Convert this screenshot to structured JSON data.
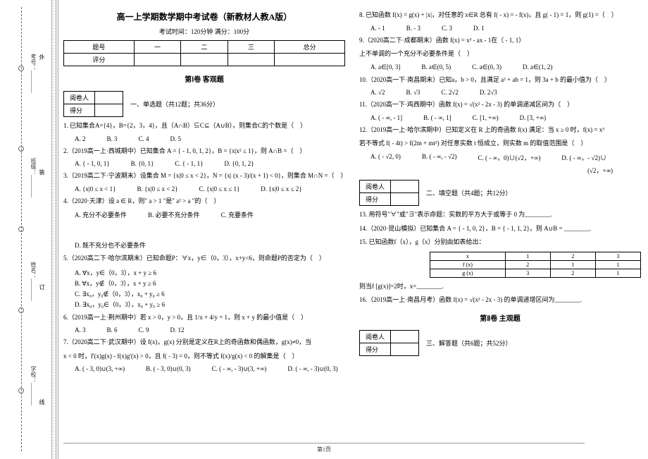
{
  "header": {
    "title": "高一上学期数学期中考试卷（新教材人教A版）",
    "subtitle": "考试时间：120分钟  满分：100分"
  },
  "scoreTable": {
    "h1": "题号",
    "h2": "一",
    "h3": "二",
    "h4": "三",
    "h5": "总分",
    "r1": "评分"
  },
  "section1": "第Ⅰ卷 客观题",
  "grader1": {
    "r1": "阅卷人",
    "r2": "得分"
  },
  "part1_label": "一、单选题（共12题；共36分）",
  "q1": "1. 已知集合A={4}，B={2，3，4}，且（A∩B）⊆C⊆（A∪B），则集合C的个数是（　）",
  "q1_opts": {
    "a": "A. 2",
    "b": "B. 3",
    "c": "C. 4",
    "d": "D. 5"
  },
  "q2": "2.（2019高一上·西城期中）已知集合 A = { - 1, 0, 1, 2}，B = {x|x² ≤ 1}，则 A∩B =（　）",
  "q2_opts": {
    "a": "A. { - 1, 0, 1}",
    "b": "B. {0, 1}",
    "c": "C. { - 1, 1}",
    "d": "D. {0, 1, 2}"
  },
  "q3": "3.（2019高二下·宁波期末）设集合 M = {x|0 ≤ x < 2}，N = {x| (x - 3)/(x + 1) < 0}，则集合 M∩N =（　）",
  "q3_opts": {
    "a": "A. {x|0 ≤ x < 1}",
    "b": "B. {x|0 ≤ x < 2}",
    "c": "C. {x|0 ≤ x ≤ 1}",
    "d": "D. {x|0 ≤ x ≤ 2}"
  },
  "q4": "4.（2020·天津）设 a ∈ R，则\" a > 1 \"是\" a² > a \"的（　）",
  "q4_opts": {
    "a": "A. 充分不必要条件",
    "b": "B. 必要不充分条件",
    "c": "C. 充要条件",
    "d": "D. 既不充分也不必要条件"
  },
  "q5": "5.（2020高二下·哈尔滨期末）已知命题P：∀x，y∈（0，3），x+y<6，则命题P的否定为（　）",
  "q5_opts": {
    "a": "A. ∀x，y∈（0，3），x + y ≥ 6",
    "b": "B. ∀x，y∉（0，3），x + y ≥ 6",
    "c": "C. ∃x₀，y₀∉（0，3），x₀ + y₀ ≥ 6",
    "d": "D. ∃x₀，y₀∈（0，3），x₀ + y₀ ≥ 6"
  },
  "q6": "6.（2019高一上·荆州期中）若 x > 0，y > 0，且 1/x + 4/y = 1，则 x + y 的最小值是（　）",
  "q6_opts": {
    "a": "A. 3",
    "b": "B. 6",
    "c": "C. 9",
    "d": "D. 12"
  },
  "q7": "7.（2020高二下·武汉期中）设 f(x)，g(x) 分别是定义在R上的奇函数和偶函数，g(x)≠0，当",
  "q7b": "x < 0 时，f'(x)g(x) - f(x)g'(x) > 0，且 f( - 3) = 0，则不等式 f(x)/g(x) < 0 的解集是（　）",
  "q7_opts": {
    "a": "A. ( - 3, 0)∪(3, +∞)",
    "b": "B. ( - 3, 0)∪(0, 3)",
    "c": "C. ( - ∞, - 3)∪(3, +∞)",
    "d": "D. ( - ∞, - 3)∪(0, 3)"
  },
  "q8": "8. 已知函数 f(x) = g(x) + |x|，对任意的 x∈R 总有 f( - x) = - f(x)，且 g( - 1) = 1，则 g(1) =（　）",
  "q8_opts": {
    "a": "A. - 1",
    "b": "B. - 3",
    "c": "C. 3",
    "d": "D. 1"
  },
  "q9": "9.（2020高二下·成都期末）函数 f(x) = x³ - ax - 1在（ - 1, 1）",
  "q9b": "上不单调的一个充分不必要条件是（　）",
  "q9_opts": {
    "a": "A. a∈[0, 3]",
    "b": "B. a∈(0, 5)",
    "c": "C. a∈(0, 3)",
    "d": "D. a∈(1, 2)"
  },
  "q10": "10.（2020高一下·南昌期末）已知a，b > 0，且满足 a² + ab = 1，则 3a + b 的最小值为（　）",
  "q10_opts": {
    "a": "A. √2",
    "b": "B. √3",
    "c": "C. 2√2",
    "d": "D. 2√3"
  },
  "q11": "11.（2020高一下·鸡西期中）函数 f(x) = √(x² - 2x - 3) 的单调递减区间为（　）",
  "q11_opts": {
    "a": "A. ( - ∞, - 1]",
    "b": "B. ( - ∞, 1]",
    "c": "C. [1, +∞)",
    "d": "D. [3, +∞)"
  },
  "q12": "12.（2019高一上·哈尔滨期中）已知定义在 R 上的奇函数 f(x) 满足：当 x ≥ 0 时，f(x) = x³",
  "q12b": "若不等式 f( - 4t) > f(2m + mt²) 对任意实数 t 恒成立，则实数 m 的取值范围是（　）",
  "q12_opts": {
    "a": "A. ( - √2, 0)",
    "b": "B. ( - ∞, - √2)",
    "c": "C. ( - ∞，0)∪(√2，+∞)",
    "d": "D. ( - ∞，- √2)∪"
  },
  "q12_extra": "(√2，+∞)",
  "grader2": {
    "r1": "阅卷人",
    "r2": "得分"
  },
  "part2_label": "二、填空题（共4题；共12分）",
  "q13": "13. 用符号\"∀\"或\"∃\"表示命题：实数的平方大于或等于 0 为________.",
  "q14": "14.（2020·昆山模拟）已知集合 A = { - 1, 0, 2}，B = { - 1, 1, 2}，则 A∪B = ________.",
  "q15": "15. 已知函数f（x），g（x）分别由如表给出：",
  "dataTable": {
    "r1c1": "x",
    "r1c2": "1",
    "r1c3": "2",
    "r1c4": "3",
    "r2c1": "f (x)",
    "r2c2": "2",
    "r2c3": "1",
    "r2c4": "1",
    "r3c1": "g (x)",
    "r3c2": "3",
    "r3c3": "2",
    "r3c4": "1"
  },
  "q15b": "则当f [g(x)]=2时，x=________.",
  "q16": "16.（2019高一上·南昌月考）函数 f(x) = √(x² - 2x - 3) 的单调递增区间为________.",
  "section2": "第Ⅱ卷 主观题",
  "grader3": {
    "r1": "阅卷人",
    "r2": "得分"
  },
  "part3_label": "三、解答题（共6题；共52分）",
  "binding": {
    "l1": "学校：________",
    "l2": "姓名：________",
    "l3": "班级：________",
    "l4": "考号：________"
  },
  "cut": {
    "a": "外",
    "b": "装",
    "c": "订",
    "d": "线"
  },
  "footer": "第1页"
}
